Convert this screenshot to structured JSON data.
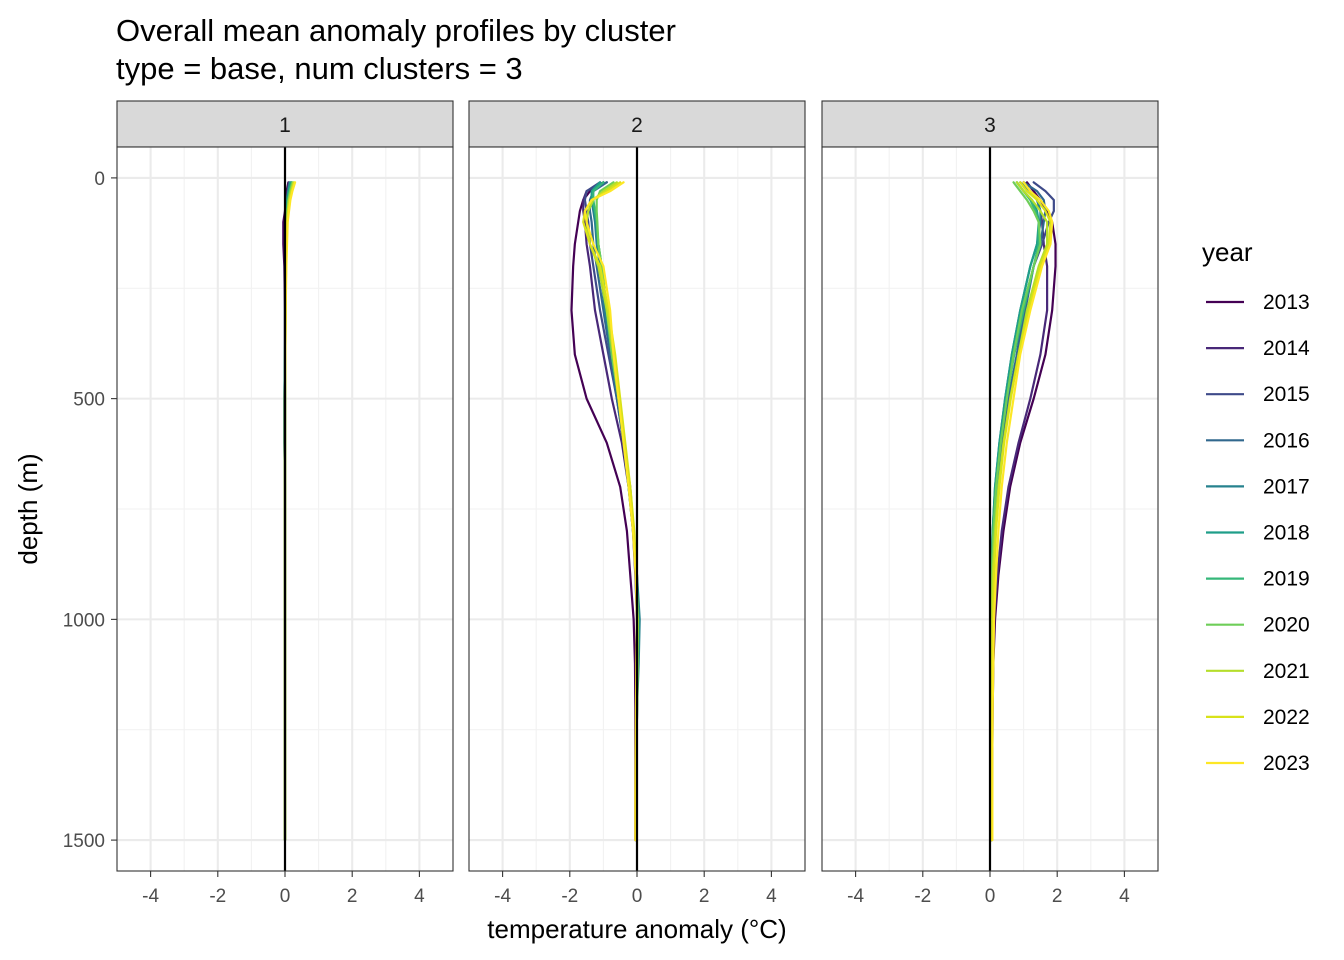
{
  "chart_data": {
    "type": "line",
    "title": "Overall mean anomaly profiles by cluster",
    "subtitle": "type = base, num clusters = 3",
    "xlabel": "temperature anomaly (°C)",
    "ylabel": "depth (m)",
    "xlim": [
      -5,
      5
    ],
    "ylim": [
      1570,
      -70
    ],
    "y_reversed": true,
    "x_ticks": [
      -4,
      -2,
      0,
      2,
      4
    ],
    "x_tick_labels": [
      "-4",
      "-2",
      "0",
      "2",
      "4"
    ],
    "y_ticks": [
      0,
      500,
      1000,
      1500
    ],
    "y_tick_labels": [
      "0",
      "500",
      "1000",
      "1500"
    ],
    "grid": true,
    "legend_title": "year",
    "legend_position": "right",
    "series_colors": [
      "#440154",
      "#482878",
      "#3e4a89",
      "#31688e",
      "#26828e",
      "#1f9e89",
      "#35b779",
      "#6ece58",
      "#b5de2b",
      "#d8e219",
      "#fde725"
    ],
    "legend": [
      "2013",
      "2014",
      "2015",
      "2016",
      "2017",
      "2018",
      "2019",
      "2020",
      "2021",
      "2022",
      "2023"
    ],
    "depths": [
      10,
      30,
      50,
      75,
      100,
      150,
      200,
      300,
      400,
      500,
      600,
      700,
      800,
      900,
      1000,
      1100,
      1200,
      1300,
      1400,
      1500
    ],
    "panels": [
      {
        "label": "1",
        "series": [
          {
            "name": "2013",
            "values": [
              0.1,
              0.05,
              0.02,
              0.0,
              -0.05,
              -0.05,
              -0.02,
              0.0,
              0.0,
              0.0,
              0.0,
              0.0,
              0.0,
              0.0,
              0.0,
              0.0,
              0.0,
              0.0,
              0.0,
              0.0
            ]
          },
          {
            "name": "2014",
            "values": [
              0.15,
              0.1,
              0.05,
              0.02,
              0.0,
              0.0,
              0.0,
              0.0,
              0.0,
              0.0,
              0.0,
              0.0,
              0.0,
              0.0,
              0.0,
              0.0,
              0.0,
              0.0,
              0.0,
              0.0
            ]
          },
          {
            "name": "2015",
            "values": [
              0.12,
              0.08,
              0.05,
              0.03,
              0.02,
              0.01,
              0.0,
              0.0,
              0.0,
              -0.02,
              -0.02,
              0.0,
              0.0,
              0.0,
              0.0,
              0.0,
              0.0,
              0.0,
              0.0,
              0.0
            ]
          },
          {
            "name": "2016",
            "values": [
              0.2,
              0.15,
              0.12,
              0.1,
              0.05,
              0.03,
              0.02,
              0.01,
              0.0,
              0.0,
              0.0,
              0.0,
              0.0,
              0.0,
              0.0,
              0.0,
              0.0,
              0.0,
              0.0,
              0.0
            ]
          },
          {
            "name": "2017",
            "values": [
              0.18,
              0.12,
              0.08,
              0.05,
              0.03,
              0.02,
              0.02,
              0.01,
              0.0,
              -0.02,
              -0.02,
              0.0,
              0.0,
              0.0,
              0.0,
              0.0,
              0.0,
              0.0,
              0.0,
              0.0
            ]
          },
          {
            "name": "2018",
            "values": [
              0.15,
              0.1,
              0.06,
              0.04,
              0.02,
              0.01,
              0.01,
              0.0,
              0.0,
              0.0,
              0.0,
              0.0,
              0.0,
              0.0,
              0.0,
              0.0,
              0.0,
              0.0,
              0.0,
              0.0
            ]
          },
          {
            "name": "2019",
            "values": [
              0.2,
              0.14,
              0.1,
              0.06,
              0.04,
              0.03,
              0.02,
              0.01,
              0.0,
              0.0,
              0.0,
              0.0,
              0.0,
              0.0,
              0.0,
              0.0,
              0.0,
              0.0,
              0.0,
              0.0
            ]
          },
          {
            "name": "2020",
            "values": [
              0.22,
              0.15,
              0.1,
              0.08,
              0.05,
              0.03,
              0.02,
              0.01,
              0.0,
              0.0,
              0.0,
              0.0,
              0.0,
              0.0,
              0.0,
              0.0,
              0.0,
              0.0,
              0.0,
              0.0
            ]
          },
          {
            "name": "2021",
            "values": [
              0.25,
              0.18,
              0.12,
              0.08,
              0.06,
              0.04,
              0.03,
              0.02,
              0.01,
              0.0,
              0.0,
              0.0,
              0.0,
              0.0,
              0.0,
              0.0,
              0.0,
              0.0,
              0.0,
              0.0
            ]
          },
          {
            "name": "2022",
            "values": [
              0.28,
              0.2,
              0.15,
              0.1,
              0.07,
              0.05,
              0.03,
              0.02,
              0.01,
              0.0,
              0.0,
              0.0,
              0.0,
              0.0,
              0.0,
              0.0,
              0.0,
              0.0,
              0.0,
              0.0
            ]
          },
          {
            "name": "2023",
            "values": [
              0.3,
              0.22,
              0.16,
              0.12,
              0.08,
              0.06,
              0.04,
              0.02,
              0.01,
              0.0,
              0.0,
              0.0,
              0.0,
              0.0,
              0.0,
              0.0,
              0.0,
              0.0,
              0.0,
              0.0
            ]
          }
        ]
      },
      {
        "label": "2",
        "series": [
          {
            "name": "2013",
            "values": [
              -0.9,
              -1.4,
              -1.6,
              -1.7,
              -1.75,
              -1.85,
              -1.9,
              -1.95,
              -1.85,
              -1.5,
              -0.9,
              -0.5,
              -0.3,
              -0.2,
              -0.1,
              -0.06,
              -0.05,
              -0.05,
              -0.05,
              -0.05
            ]
          },
          {
            "name": "2014",
            "values": [
              -1.0,
              -1.5,
              -1.6,
              -1.6,
              -1.55,
              -1.5,
              -1.4,
              -1.25,
              -1.0,
              -0.75,
              -0.45,
              -0.25,
              -0.12,
              -0.05,
              0.0,
              0.0,
              -0.02,
              -0.03,
              -0.03,
              -0.03
            ]
          },
          {
            "name": "2015",
            "values": [
              -1.1,
              -1.5,
              -1.55,
              -1.5,
              -1.45,
              -1.4,
              -1.3,
              -1.1,
              -0.85,
              -0.6,
              -0.4,
              -0.2,
              -0.1,
              -0.02,
              0.05,
              0.02,
              0.0,
              -0.01,
              -0.02,
              -0.02
            ]
          },
          {
            "name": "2016",
            "values": [
              -0.9,
              -1.3,
              -1.4,
              -1.4,
              -1.35,
              -1.3,
              -1.2,
              -1.0,
              -0.8,
              -0.6,
              -0.4,
              -0.25,
              -0.1,
              0.0,
              0.05,
              0.02,
              0.0,
              -0.01,
              -0.02,
              -0.02
            ]
          },
          {
            "name": "2017",
            "values": [
              -1.0,
              -1.3,
              -1.35,
              -1.3,
              -1.25,
              -1.2,
              -1.1,
              -0.95,
              -0.75,
              -0.55,
              -0.4,
              -0.25,
              -0.1,
              0.0,
              0.08,
              0.05,
              0.0,
              -0.01,
              -0.02,
              -0.02
            ]
          },
          {
            "name": "2018",
            "values": [
              -1.1,
              -1.35,
              -1.35,
              -1.25,
              -1.2,
              -1.15,
              -1.05,
              -0.9,
              -0.75,
              -0.55,
              -0.4,
              -0.25,
              -0.12,
              -0.02,
              0.05,
              0.03,
              0.0,
              -0.01,
              -0.02,
              -0.02
            ]
          },
          {
            "name": "2019",
            "values": [
              -1.0,
              -1.3,
              -1.3,
              -1.25,
              -1.2,
              -1.15,
              -1.05,
              -0.9,
              -0.75,
              -0.55,
              -0.38,
              -0.22,
              -0.1,
              -0.02,
              0.03,
              0.02,
              0.0,
              -0.01,
              -0.02,
              -0.02
            ]
          },
          {
            "name": "2020",
            "values": [
              -0.7,
              -1.1,
              -1.2,
              -1.2,
              -1.18,
              -1.15,
              -1.05,
              -0.9,
              -0.75,
              -0.55,
              -0.38,
              -0.22,
              -0.1,
              -0.02,
              0.02,
              0.01,
              0.0,
              -0.01,
              -0.02,
              -0.02
            ]
          },
          {
            "name": "2021",
            "values": [
              -0.6,
              -1.0,
              -1.3,
              -1.45,
              -1.5,
              -1.4,
              -1.15,
              -0.9,
              -0.7,
              -0.55,
              -0.38,
              -0.22,
              -0.1,
              -0.02,
              0.02,
              0.01,
              0.0,
              -0.01,
              -0.02,
              -0.02
            ]
          },
          {
            "name": "2022",
            "values": [
              -0.5,
              -0.9,
              -1.35,
              -1.55,
              -1.6,
              -1.4,
              -1.1,
              -0.85,
              -0.65,
              -0.5,
              -0.35,
              -0.2,
              -0.08,
              -0.02,
              0.01,
              0.0,
              -0.01,
              -0.02,
              -0.03,
              -0.03
            ]
          },
          {
            "name": "2023",
            "values": [
              -0.4,
              -0.8,
              -1.35,
              -1.55,
              -1.5,
              -1.3,
              -1.0,
              -0.8,
              -0.7,
              -0.55,
              -0.4,
              -0.25,
              -0.12,
              -0.04,
              0.0,
              -0.02,
              -0.03,
              -0.04,
              -0.05,
              -0.05
            ]
          }
        ]
      },
      {
        "label": "3",
        "series": [
          {
            "name": "2013",
            "values": [
              1.1,
              1.3,
              1.5,
              1.7,
              1.85,
              1.95,
              1.95,
              1.85,
              1.65,
              1.3,
              0.9,
              0.6,
              0.4,
              0.25,
              0.15,
              0.1,
              0.08,
              0.07,
              0.06,
              0.05
            ]
          },
          {
            "name": "2014",
            "values": [
              1.0,
              1.2,
              1.4,
              1.5,
              1.55,
              1.6,
              1.7,
              1.7,
              1.5,
              1.2,
              0.85,
              0.55,
              0.35,
              0.22,
              0.12,
              0.08,
              0.06,
              0.05,
              0.05,
              0.05
            ]
          },
          {
            "name": "2015",
            "values": [
              1.3,
              1.65,
              1.9,
              1.9,
              1.75,
              1.55,
              1.3,
              1.0,
              0.8,
              0.6,
              0.4,
              0.25,
              0.15,
              0.08,
              0.05,
              0.04,
              0.03,
              0.03,
              0.03,
              0.03
            ]
          },
          {
            "name": "2016",
            "values": [
              1.0,
              1.4,
              1.6,
              1.65,
              1.6,
              1.5,
              1.3,
              1.05,
              0.8,
              0.55,
              0.35,
              0.2,
              0.1,
              0.05,
              0.02,
              0.02,
              0.02,
              0.02,
              0.02,
              0.02
            ]
          },
          {
            "name": "2017",
            "values": [
              0.9,
              1.2,
              1.4,
              1.5,
              1.5,
              1.4,
              1.2,
              0.9,
              0.65,
              0.45,
              0.28,
              0.15,
              0.08,
              0.03,
              0.01,
              0.01,
              0.02,
              0.02,
              0.02,
              0.02
            ]
          },
          {
            "name": "2018",
            "values": [
              0.8,
              1.0,
              1.25,
              1.4,
              1.45,
              1.4,
              1.2,
              0.9,
              0.65,
              0.45,
              0.28,
              0.15,
              0.08,
              0.04,
              0.02,
              0.02,
              0.02,
              0.02,
              0.02,
              0.02
            ]
          },
          {
            "name": "2019",
            "values": [
              0.8,
              1.0,
              1.2,
              1.35,
              1.45,
              1.45,
              1.3,
              1.0,
              0.72,
              0.5,
              0.32,
              0.18,
              0.1,
              0.05,
              0.03,
              0.02,
              0.02,
              0.02,
              0.02,
              0.02
            ]
          },
          {
            "name": "2020",
            "values": [
              0.7,
              0.9,
              1.1,
              1.3,
              1.45,
              1.5,
              1.3,
              0.95,
              0.7,
              0.5,
              0.32,
              0.18,
              0.1,
              0.05,
              0.03,
              0.02,
              0.02,
              0.02,
              0.02,
              0.02
            ]
          },
          {
            "name": "2021",
            "values": [
              0.8,
              1.0,
              1.25,
              1.5,
              1.7,
              1.7,
              1.45,
              1.1,
              0.85,
              0.6,
              0.4,
              0.25,
              0.15,
              0.08,
              0.05,
              0.04,
              0.04,
              0.04,
              0.04,
              0.04
            ]
          },
          {
            "name": "2022",
            "values": [
              0.9,
              1.1,
              1.4,
              1.65,
              1.8,
              1.75,
              1.5,
              1.15,
              0.85,
              0.62,
              0.42,
              0.28,
              0.18,
              0.12,
              0.08,
              0.06,
              0.05,
              0.05,
              0.05,
              0.05
            ]
          },
          {
            "name": "2023",
            "values": [
              1.0,
              1.2,
              1.5,
              1.75,
              1.85,
              1.8,
              1.55,
              1.2,
              0.9,
              0.7,
              0.5,
              0.35,
              0.25,
              0.18,
              0.12,
              0.1,
              0.08,
              0.07,
              0.07,
              0.07
            ]
          }
        ]
      }
    ]
  }
}
